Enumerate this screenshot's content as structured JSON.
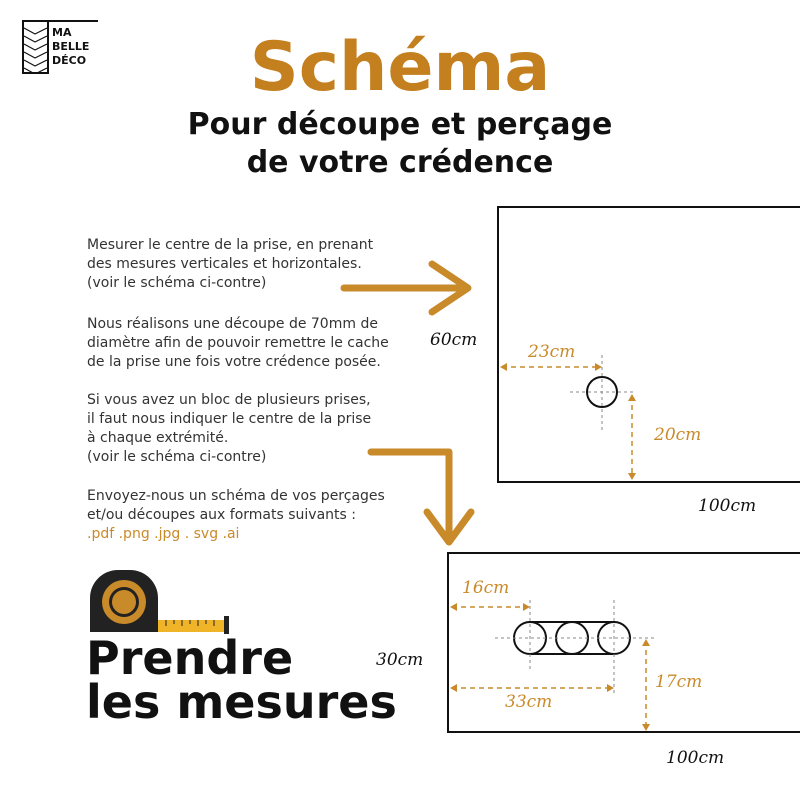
{
  "logo": {
    "text": "MA BELLE DÉCO",
    "lines": [
      "MA",
      "BELLE",
      "DÉCO"
    ]
  },
  "header": {
    "title": "Schéma",
    "subtitle": "Pour découpe et perçage\nde votre crédence"
  },
  "instructions": [
    "Mesurer le centre de la prise, en prenant\ndes mesures verticales et horizontales.\n(voir le schéma ci-contre)",
    "Nous réalisons une découpe de 70mm de\ndiamètre afin de pouvoir remettre le cache\nde la prise une fois votre crédence posée.",
    "Si vous avez un bloc de plusieurs prises,\nil faut nous indiquer le centre de la prise\nà chaque extrémité.\n(voir le schéma ci-contre)",
    "Envoyez-nous un schéma de vos perçages\net/ou découpes aux formats suivants :"
  ],
  "formats": ".pdf .png .jpg . svg .ai",
  "footer_title": "Prendre\nles mesures",
  "diagram1": {
    "height": "60cm",
    "width": "100cm",
    "left": "23cm",
    "bottom": "20cm"
  },
  "diagram2": {
    "height": "30cm",
    "width": "100cm",
    "left_first": "16cm",
    "left_last": "33cm",
    "bottom": "17cm"
  },
  "colors": {
    "accent": "#c98a2a",
    "title": "#c47f1e",
    "text": "#111111"
  },
  "icons": [
    "tape-measure-icon",
    "arrow-right-icon",
    "arrow-down-icon"
  ]
}
